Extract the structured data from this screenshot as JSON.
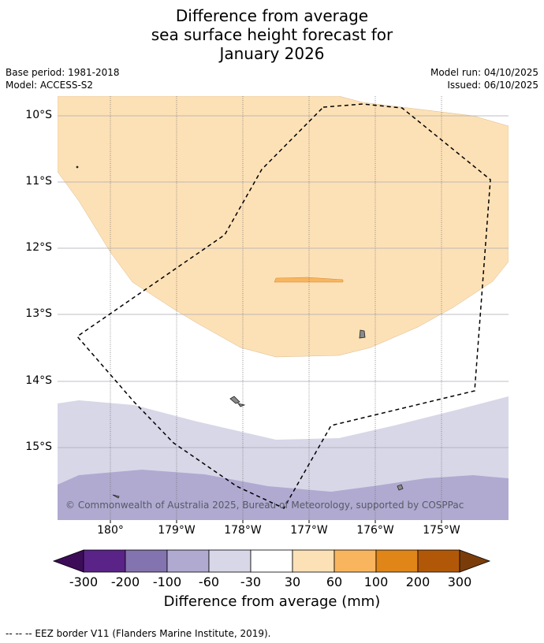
{
  "title": {
    "line1": "Difference from average",
    "line2": "sea surface height forecast for",
    "line3": "January 2026"
  },
  "meta": {
    "base_period": "Base period: 1981-2018",
    "model": "Model: ACCESS-S2",
    "model_run": "Model run: 04/10/2025",
    "issued": "Issued: 06/10/2025"
  },
  "map": {
    "lat_labels": [
      "10°S",
      "11°S",
      "12°S",
      "13°S",
      "14°S",
      "15°S"
    ],
    "lon_labels": [
      "180°",
      "179°W",
      "178°W",
      "177°W",
      "176°W",
      "175°W"
    ],
    "copyright": "© Commonwealth of Australia 2025, Bureau of Meteorology, supported by COSPPac",
    "colors": {
      "c_30_60": "#fde1b6",
      "c_60_100": "#f9b55e",
      "c_m60_m30": "#d7d7e8",
      "c_m100_m60": "#b0aad1",
      "land": "#8a8a8a"
    }
  },
  "colorbar": {
    "title": "Difference from average (mm)",
    "ticks": [
      "-300",
      "-200",
      "-100",
      "-60",
      "-30",
      "30",
      "60",
      "100",
      "200",
      "300"
    ],
    "colors": [
      "#3d0c58",
      "#5a2387",
      "#8373ae",
      "#b0aad1",
      "#d7d7e8",
      "#ffffff",
      "#fde1b6",
      "#f9b55e",
      "#e08518",
      "#b15808",
      "#7a3d0a"
    ]
  },
  "footer": "--  --  -- EEZ border V11 (Flanders Marine Institute, 2019)."
}
